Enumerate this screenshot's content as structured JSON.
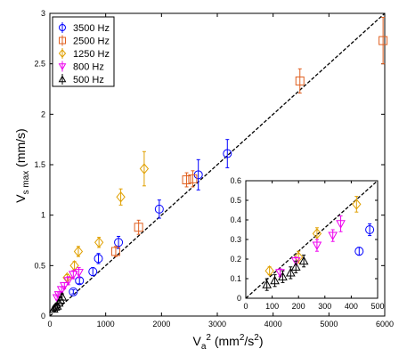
{
  "chart_data": [
    {
      "type": "scatter",
      "xlabel": "V_a^2 (mm^2/s^2)",
      "ylabel": "V_s max (mm/s)",
      "xlim": [
        0,
        6000
      ],
      "ylim": [
        0,
        3
      ],
      "xticks": [
        "0",
        "1000",
        "2000",
        "3000",
        "4000",
        "5000",
        "6000"
      ],
      "yticks": [
        "0",
        "0.5",
        "1",
        "1.5",
        "2",
        "2.5",
        "3"
      ],
      "legend_position": "top-left",
      "grid": false,
      "reference_line": {
        "style": "dashed",
        "points": [
          [
            0,
            0
          ],
          [
            6000,
            3
          ]
        ]
      },
      "series": [
        {
          "name": "3500 Hz",
          "color": "#0000ff",
          "marker": "circle",
          "points": [
            [
              420,
              0.24,
              0.02
            ],
            [
              530,
              0.35,
              0.03
            ],
            [
              770,
              0.44,
              0.04
            ],
            [
              870,
              0.57,
              0.05
            ],
            [
              1230,
              0.73,
              0.06
            ],
            [
              1960,
              1.06,
              0.09
            ],
            [
              2660,
              1.4,
              0.15
            ],
            [
              3180,
              1.61,
              0.14
            ]
          ]
        },
        {
          "name": "2500 Hz",
          "color": "#e06020",
          "marker": "square",
          "points": [
            [
              1180,
              0.64,
              0.05
            ],
            [
              1590,
              0.88,
              0.07
            ],
            [
              2450,
              1.35,
              0.07
            ],
            [
              2560,
              1.36,
              0.08
            ],
            [
              4480,
              2.33,
              0.12
            ],
            [
              5970,
              2.73,
              0.23
            ]
          ]
        },
        {
          "name": "1250 Hz",
          "color": "#e0a000",
          "marker": "diamond",
          "points": [
            [
              310,
              0.38,
              0.03
            ],
            [
              440,
              0.5,
              0.04
            ],
            [
              510,
              0.64,
              0.05
            ],
            [
              880,
              0.73,
              0.05
            ],
            [
              1270,
              1.18,
              0.08
            ],
            [
              1690,
              1.46,
              0.17
            ]
          ]
        },
        {
          "name": "800 Hz",
          "color": "#ee00ee",
          "marker": "triangle-down",
          "points": [
            [
              130,
              0.18,
              0.02
            ],
            [
              160,
              0.21,
              0.02
            ],
            [
              210,
              0.26,
              0.03
            ],
            [
              260,
              0.3,
              0.03
            ],
            [
              330,
              0.35,
              0.04
            ],
            [
              420,
              0.41,
              0.04
            ],
            [
              520,
              0.43,
              0.05
            ]
          ]
        },
        {
          "name": "500 Hz",
          "color": "#000000",
          "marker": "triangle-up",
          "points": [
            [
              70,
              0.07,
              0.02
            ],
            [
              100,
              0.09,
              0.02
            ],
            [
              130,
              0.1,
              0.02
            ],
            [
              160,
              0.13,
              0.02
            ],
            [
              190,
              0.16,
              0.03
            ],
            [
              220,
              0.19,
              0.03
            ]
          ]
        }
      ]
    },
    {
      "type": "scatter",
      "xlim": [
        0,
        500
      ],
      "ylim": [
        0,
        0.6
      ],
      "xticks": [
        "0",
        "100",
        "200",
        "300",
        "400",
        "500"
      ],
      "yticks": [
        "0",
        "0.1",
        "0.2",
        "0.3",
        "0.4",
        "0.5",
        "0.6"
      ],
      "grid": false,
      "reference_line": {
        "style": "dashed",
        "points": [
          [
            0,
            0
          ],
          [
            500,
            0.6
          ]
        ]
      },
      "series": [
        {
          "color": "#0000ff",
          "marker": "circle",
          "points": [
            [
              430,
              0.24,
              0.02
            ],
            [
              470,
              0.35,
              0.03
            ]
          ]
        },
        {
          "color": "#e0a000",
          "marker": "diamond",
          "points": [
            [
              90,
              0.14,
              0.02
            ],
            [
              200,
              0.21,
              0.03
            ],
            [
              270,
              0.33,
              0.03
            ],
            [
              420,
              0.48,
              0.04
            ]
          ]
        },
        {
          "color": "#ee00ee",
          "marker": "triangle-down",
          "points": [
            [
              130,
              0.13,
              0.02
            ],
            [
              190,
              0.19,
              0.02
            ],
            [
              270,
              0.27,
              0.03
            ],
            [
              330,
              0.32,
              0.03
            ],
            [
              360,
              0.38,
              0.04
            ]
          ]
        },
        {
          "color": "#000000",
          "marker": "triangle-up",
          "points": [
            [
              80,
              0.07,
              0.03
            ],
            [
              110,
              0.09,
              0.03
            ],
            [
              140,
              0.11,
              0.03
            ],
            [
              170,
              0.13,
              0.03
            ],
            [
              190,
              0.16,
              0.03
            ],
            [
              220,
              0.19,
              0.03
            ]
          ]
        }
      ]
    }
  ]
}
